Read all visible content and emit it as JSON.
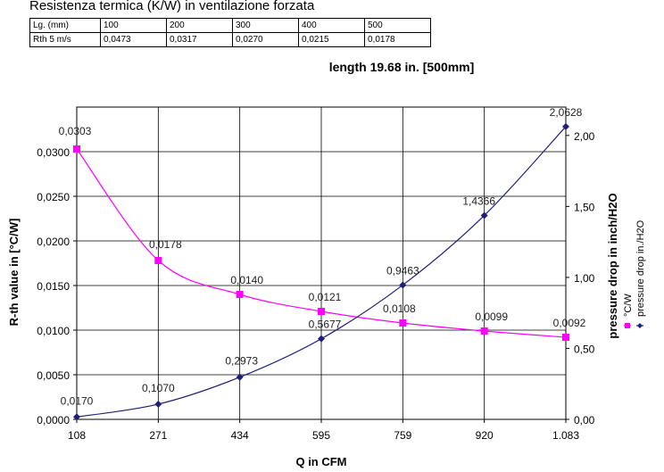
{
  "header": {
    "title": "Resistenza termica (K/W) in ventilazione forzata",
    "table": {
      "header_row": [
        "Lg. (mm)",
        "100",
        "200",
        "300",
        "400",
        "500"
      ],
      "value_row": [
        "Rth 5 m/s",
        "0,0473",
        "0,0317",
        "0,0270",
        "0,0215",
        "0,0178"
      ]
    }
  },
  "chart_data": {
    "type": "line",
    "title": "length 19.68 in. [500mm]",
    "xlabel": "Q in CFM",
    "ylabel": "R-th value in [°C/W]",
    "y2label": "pressure drop in inch/H2O",
    "categories": [
      "108",
      "271",
      "434",
      "595",
      "759",
      "920",
      "1.083"
    ],
    "ylim": [
      0,
      0.035
    ],
    "y2lim": [
      0,
      2.2
    ],
    "yticks": [
      "0,0000",
      "0,0050",
      "0,0100",
      "0,0150",
      "0,0200",
      "0,0250",
      "0,0300"
    ],
    "y2ticks": [
      "0,00",
      "0,50",
      "1,00",
      "1,50",
      "2,00"
    ],
    "grid": true,
    "legend": {
      "placement": "right",
      "entries": [
        "°C/W",
        "pressure drop in./H2O"
      ]
    },
    "series": [
      {
        "name": "°C/W",
        "axis": "left",
        "color": "#ff00ff",
        "values": [
          0.0303,
          0.0178,
          0.014,
          0.0121,
          0.0108,
          0.0099,
          0.0092
        ],
        "labels": [
          "0,0303",
          "0,0178",
          "0,0140",
          "0,0121",
          "0,0108",
          "0,0099",
          "0,0092"
        ]
      },
      {
        "name": "pressure drop in./H2O",
        "axis": "right",
        "color": "#1f1f7a",
        "values": [
          0.017,
          0.107,
          0.2973,
          0.5677,
          0.9463,
          1.4366,
          2.0628
        ],
        "labels": [
          "0,0170",
          "0,1070",
          "0,2973",
          "0,5677",
          "0,9463",
          "1,4366",
          "2,0628"
        ]
      }
    ]
  }
}
